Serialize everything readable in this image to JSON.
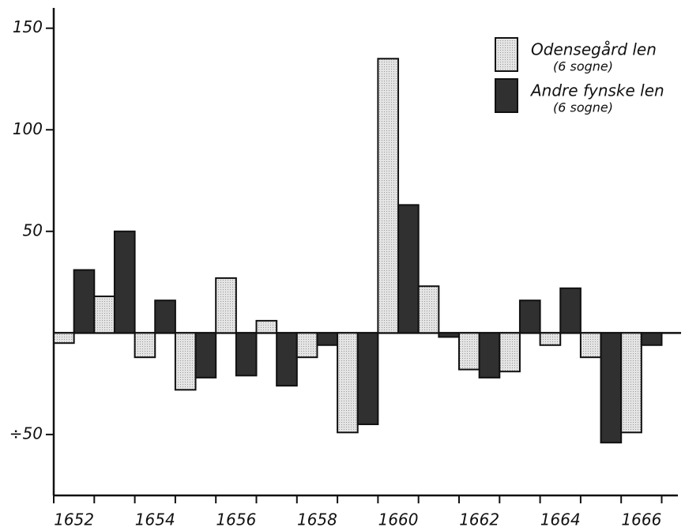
{
  "chart_data": {
    "type": "bar",
    "categories": [
      "1652",
      null,
      "1654",
      null,
      "1656",
      null,
      "1658",
      null,
      "1660",
      null,
      "1662",
      null,
      "1664",
      null,
      "1666"
    ],
    "series": [
      {
        "name": "Odensegård len",
        "legend_note": "(6 sogne)",
        "color": "#d4d4d4",
        "values": [
          -5,
          18,
          -12,
          -28,
          27,
          6,
          -12,
          -49,
          135,
          23,
          -18,
          -19,
          -6,
          -12,
          -49
        ]
      },
      {
        "name": "Andre fynske len",
        "legend_note": "(6 sogne)",
        "color": "#303030",
        "values": [
          31,
          50,
          16,
          -22,
          -21,
          -26,
          -6,
          -45,
          63,
          -2,
          -22,
          16,
          22,
          -54,
          -6
        ]
      }
    ],
    "ylim": [
      -80,
      160
    ],
    "yticks": [
      {
        "value": -50,
        "label": "÷50"
      },
      50,
      100,
      150
    ],
    "grid": false,
    "legend": "upper right"
  }
}
